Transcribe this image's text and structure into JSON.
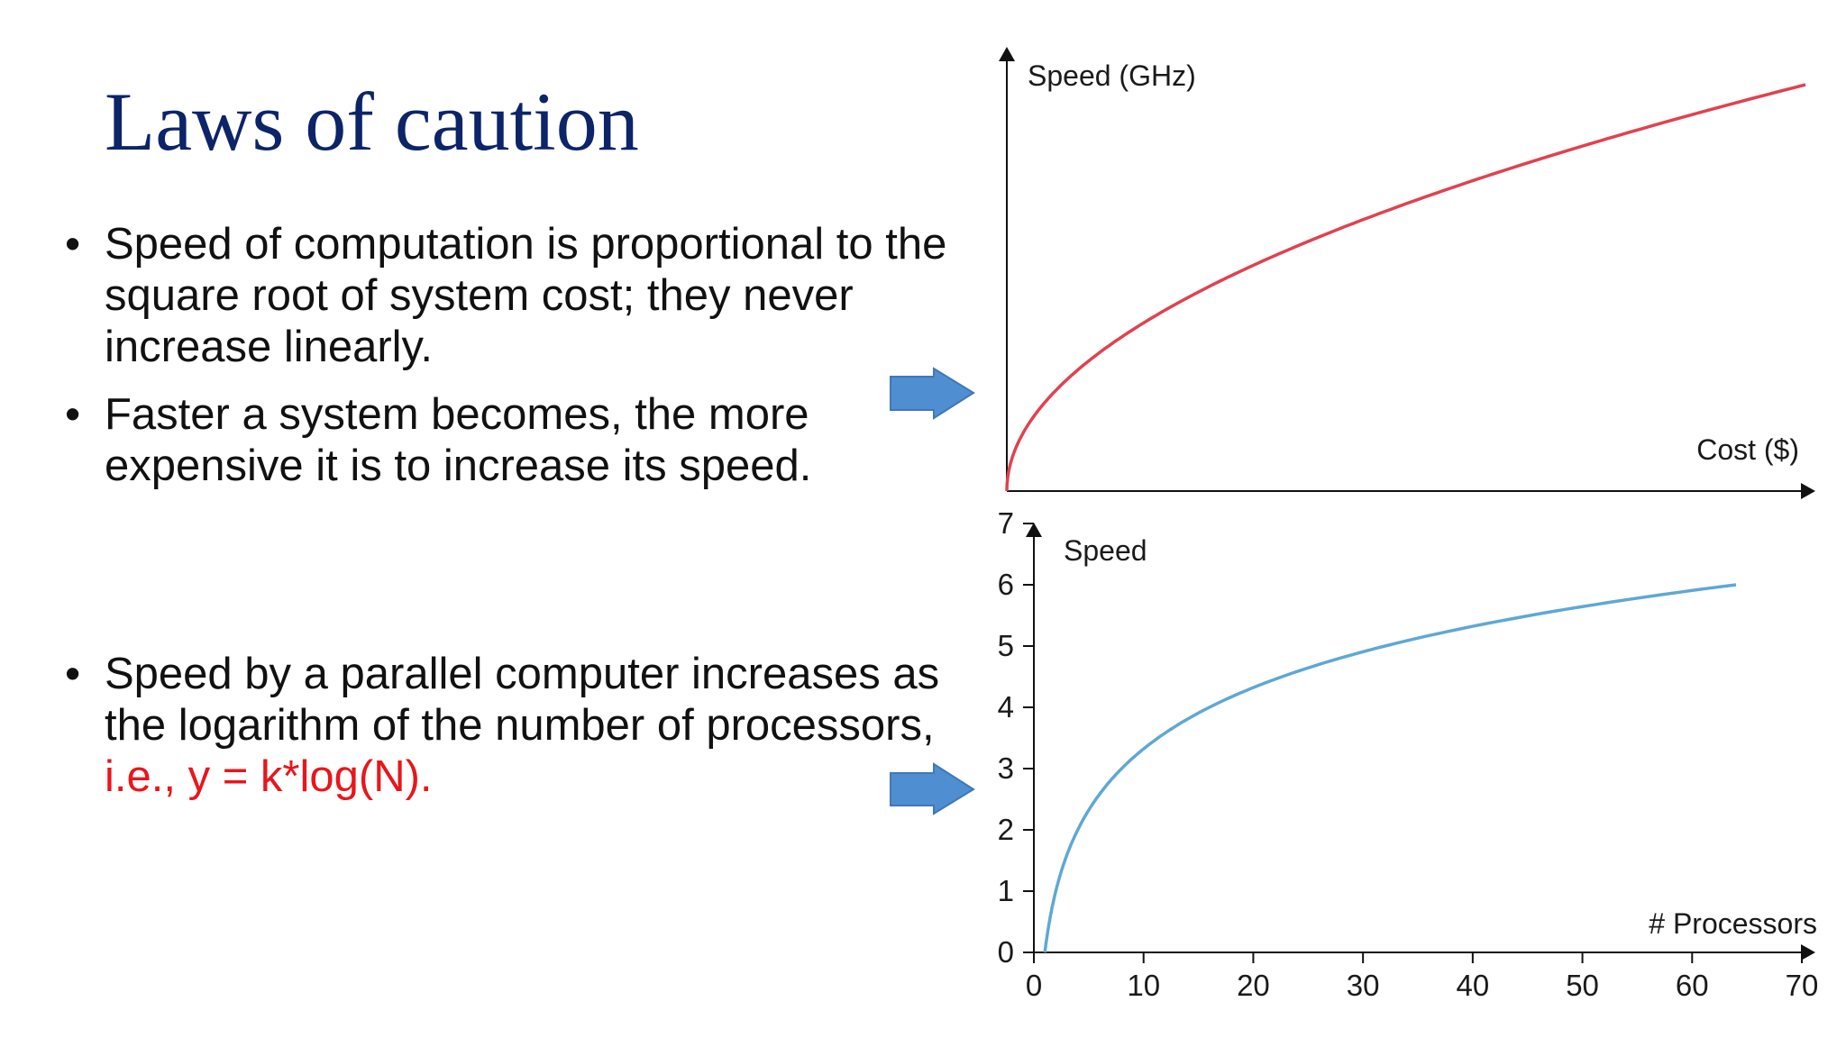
{
  "slide": {
    "title": "Laws of caution",
    "bullets": [
      {
        "text": "Speed of computation is proportional to the square root of system cost; they never increase linearly."
      },
      {
        "text": "Faster a system becomes, the more expensive it is to increase its speed."
      },
      {
        "text": "Speed by a parallel computer increases as the logarithm of the number of processors, ",
        "highlight": "i.e., y = k*log(N)."
      }
    ],
    "arrow_color": "#4f8ed1"
  },
  "chart_data": [
    {
      "type": "line",
      "xlabel": "Cost ($)",
      "ylabel": "Speed (GHz)",
      "x_ticks": false,
      "y_ticks": false,
      "grid": false,
      "series": [
        {
          "color": "#e0424f",
          "x": [
            0,
            5,
            10,
            20,
            30,
            40,
            50,
            60,
            70,
            80,
            90,
            100
          ],
          "y": [
            0,
            2.24,
            3.16,
            4.47,
            5.48,
            6.32,
            7.07,
            7.75,
            8.37,
            8.94,
            9.49,
            10
          ]
        }
      ]
    },
    {
      "type": "line",
      "xlabel": "# Processors",
      "ylabel": "Speed",
      "xlim": [
        0,
        70
      ],
      "ylim": [
        0,
        7
      ],
      "x_ticks": [
        "0",
        "10",
        "20",
        "30",
        "40",
        "50",
        "60",
        "70"
      ],
      "y_ticks": [
        "0",
        "1",
        "2",
        "3",
        "4",
        "5",
        "6",
        "7"
      ],
      "grid": false,
      "series": [
        {
          "color": "#5fa8d3",
          "x": [
            1,
            2,
            4,
            8,
            16,
            32,
            64
          ],
          "y": [
            0,
            1,
            2,
            3,
            4,
            5,
            6
          ]
        }
      ]
    }
  ]
}
